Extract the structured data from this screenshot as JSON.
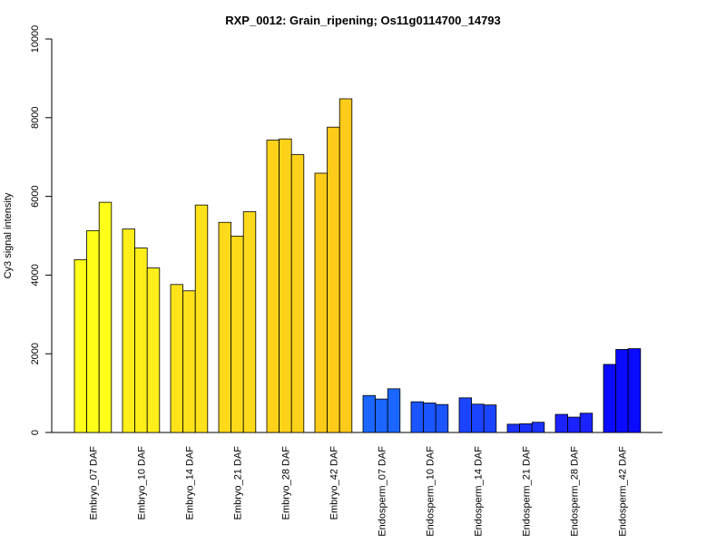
{
  "chart_data": {
    "type": "bar",
    "title": "RXP_0012: Grain_ripening; Os11g0114700_14793",
    "xlabel": "",
    "ylabel": "Cy3 signal intensity",
    "ylim": [
      0,
      10000
    ],
    "yticks": [
      0,
      2000,
      4000,
      6000,
      8000,
      10000
    ],
    "grid": false,
    "categories": [
      "Embryo_07 DAF",
      "Embryo_10 DAF",
      "Embryo_14 DAF",
      "Embryo_21 DAF",
      "Embryo_28 DAF",
      "Embryo_42 DAF",
      "Endosperm_07 DAF",
      "Endosperm_10 DAF",
      "Endosperm_14 DAF",
      "Endosperm_21 DAF",
      "Endosperm_28 DAF",
      "Endosperm_42 DAF"
    ],
    "group_colors": [
      "#FFFF1A",
      "#FFEE1A",
      "#FFE21A",
      "#FFDA1A",
      "#FFD21A",
      "#FFCB1A",
      "#1A66FF",
      "#1A55FF",
      "#1A44FF",
      "#1A33FF",
      "#1A22FF",
      "#0A0AFF"
    ],
    "values": [
      [
        4390,
        5130,
        5850
      ],
      [
        5170,
        4690,
        4180
      ],
      [
        3760,
        3600,
        5780
      ],
      [
        5340,
        4990,
        5610
      ],
      [
        7430,
        7460,
        7060
      ],
      [
        6590,
        7760,
        8480
      ],
      [
        940,
        850,
        1110
      ],
      [
        780,
        750,
        710
      ],
      [
        880,
        720,
        700
      ],
      [
        210,
        220,
        260
      ],
      [
        460,
        390,
        490
      ],
      [
        1730,
        2110,
        2130
      ]
    ]
  }
}
